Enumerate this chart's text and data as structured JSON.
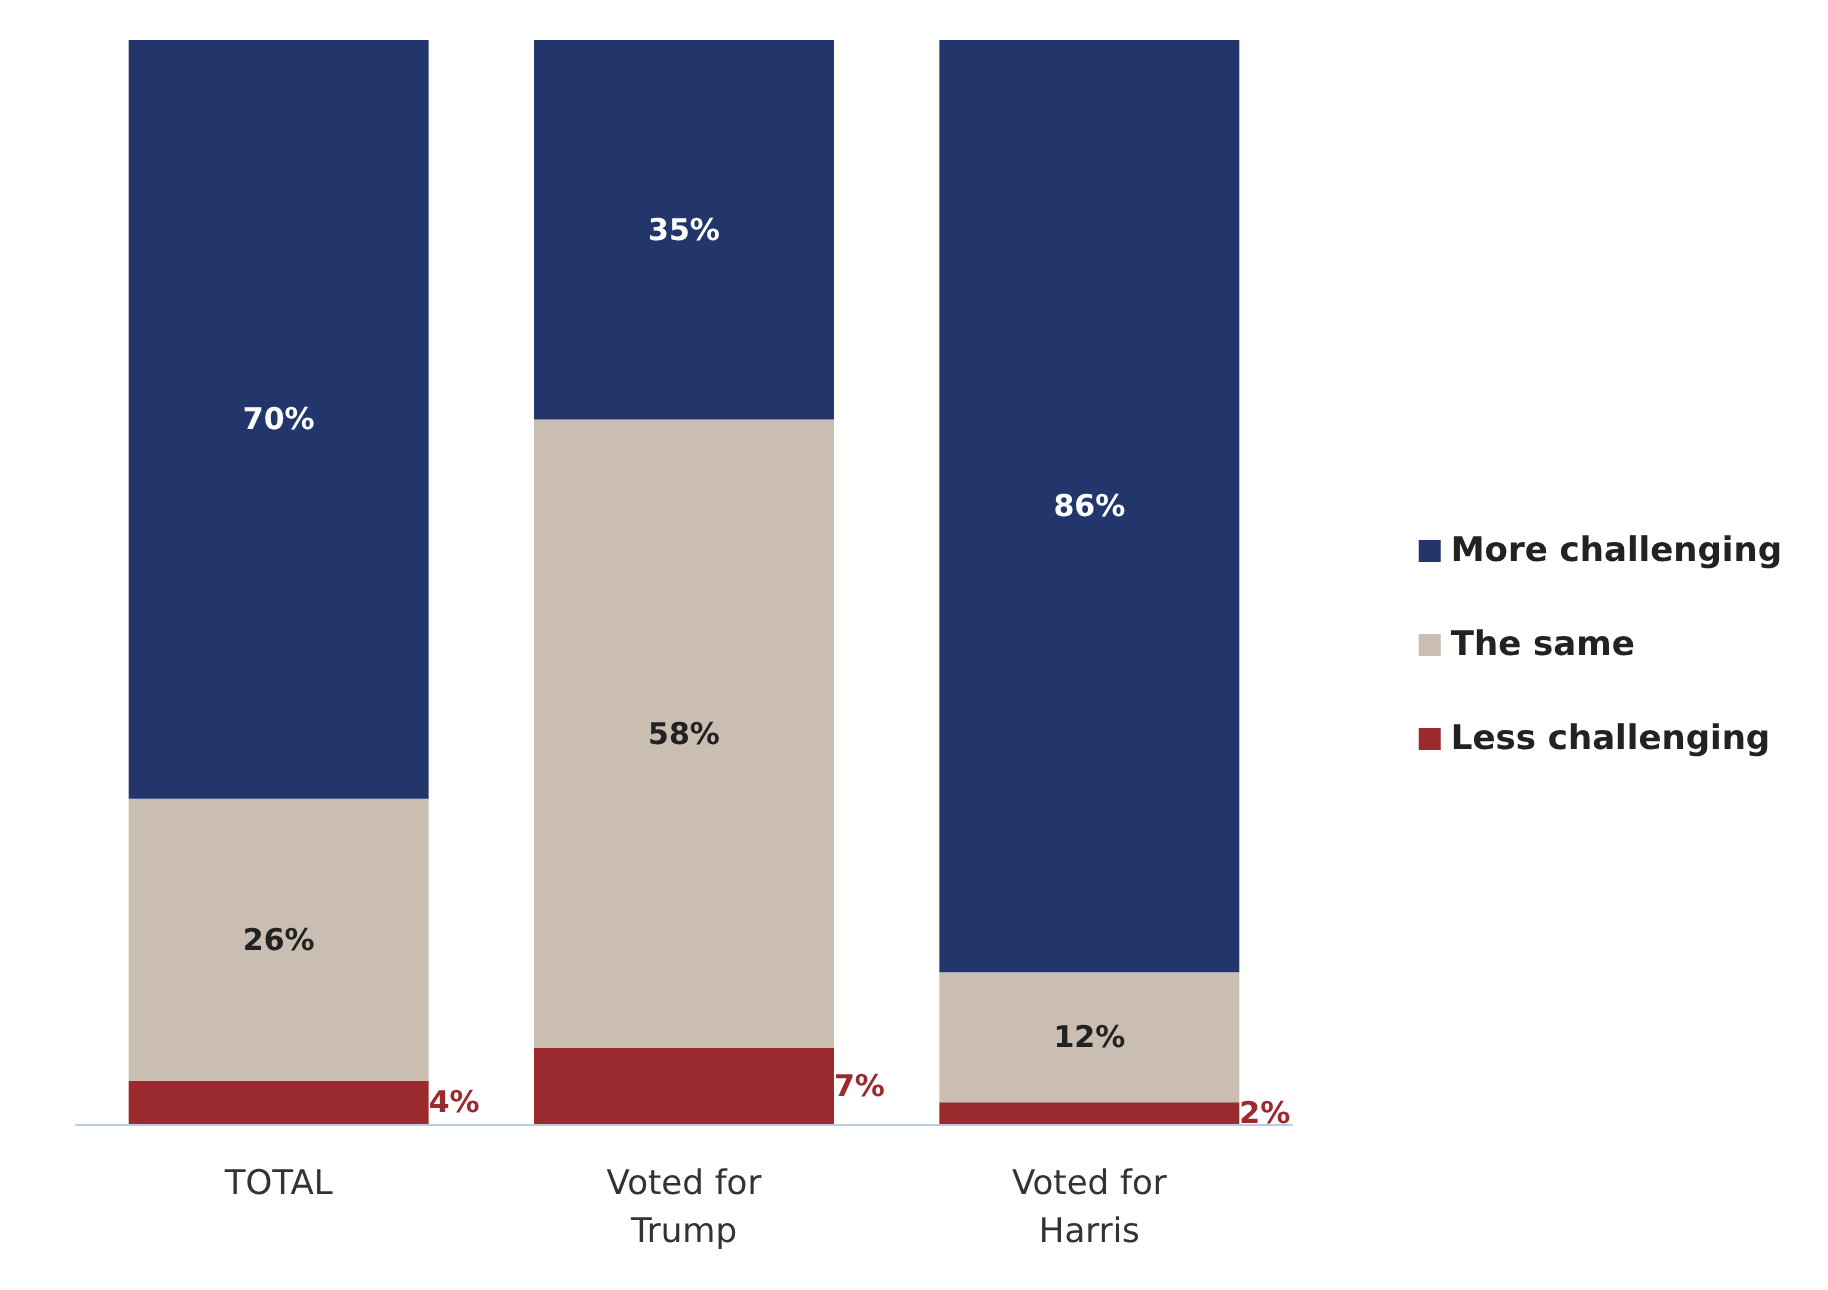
{
  "chart_data": {
    "type": "bar",
    "stacked": true,
    "legend": "right",
    "grid": false,
    "categories": [
      "TOTAL",
      "Voted for\nTrump",
      "Voted for\nHarris"
    ],
    "series": [
      {
        "name": "Less challenging",
        "color": "#9b2a2f",
        "values": [
          4,
          7,
          2
        ],
        "value_labels": [
          "4%",
          "7%",
          "2%"
        ]
      },
      {
        "name": "The same",
        "color": "#c9beb1",
        "values": [
          26,
          58,
          12
        ],
        "value_labels": [
          "26%",
          "58%",
          "12%"
        ]
      },
      {
        "name": "More challenging",
        "color": "#22366b",
        "values": [
          70,
          35,
          86
        ],
        "value_labels": [
          "70%",
          "35%",
          "86%"
        ]
      }
    ]
  }
}
